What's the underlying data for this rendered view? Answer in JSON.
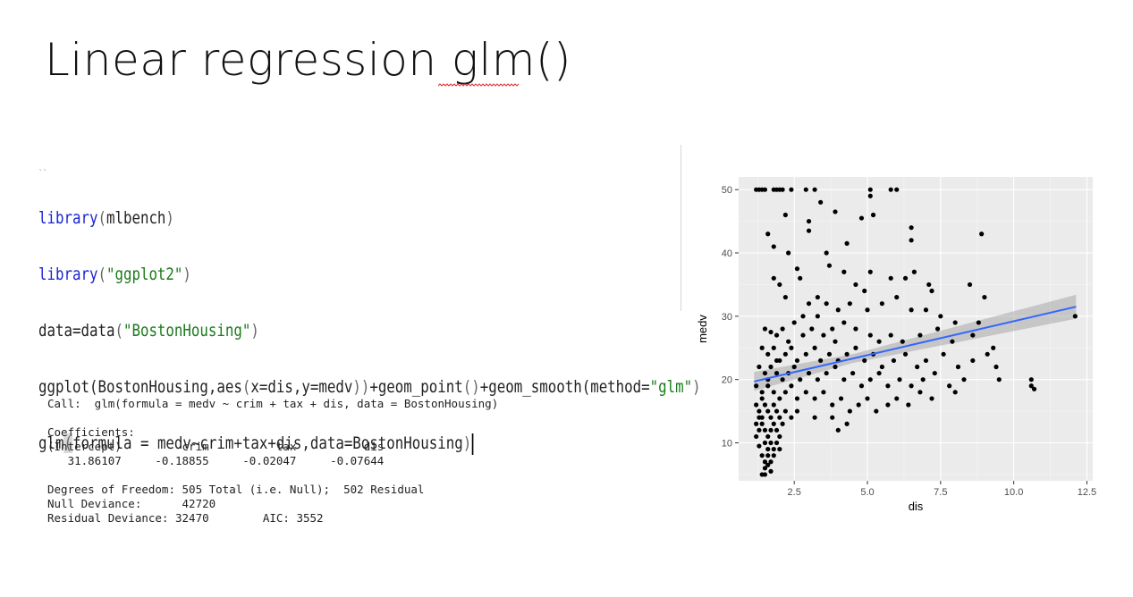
{
  "slide": {
    "title": "Linear regression glm()"
  },
  "code": {
    "marker": "``",
    "lines": [
      {
        "fn": "library",
        "open": "(",
        "arg": "mlbench",
        "close": ")"
      },
      {
        "fn": "library",
        "open": "(",
        "arg": "\"ggplot2\"",
        "close": ")"
      },
      {
        "pre": "data=data",
        "open": "(",
        "arg": "\"BostonHousing\"",
        "close": ")"
      },
      {
        "pre": "ggplot(BostonHousing,aes",
        "open": "(",
        "arg": "x=dis,y=medv",
        "close": "))",
        "post1": "+geom_point",
        "post1p": "()",
        "post2": "+geom_smooth(method=",
        "str": "\"glm\"",
        "end": ")"
      },
      {
        "pre": "glm",
        "open": "(",
        "arg": "formula = medv~crim+tax+dis,data=BostonHousing",
        "close": ")"
      }
    ]
  },
  "output": {
    "call": "Call:  glm(formula = medv ~ crim + tax + dis, data = BostonHousing)",
    "coef_title": "Coefficients:",
    "coef_names": "(Intercept)         crim          tax          dis  ",
    "coef_values": "   31.86107     -0.18855     -0.02047     -0.07644  ",
    "dof": "Degrees of Freedom: 505 Total (i.e. Null);  502 Residual",
    "null_dev": "Null Deviance:\t    42720 ",
    "resid_dev": "Residual Deviance: 32470 \tAIC: 3552"
  },
  "chart_data": {
    "type": "scatter",
    "xlabel": "dis",
    "ylabel": "medv",
    "xlim": [
      0.6,
      12.7
    ],
    "ylim": [
      4,
      52
    ],
    "xticks": [
      2.5,
      5.0,
      7.5,
      10.0,
      12.5
    ],
    "xtick_labels": [
      "2.5",
      "5.0",
      "7.5",
      "10.0",
      "12.5"
    ],
    "yticks": [
      10,
      20,
      30,
      40,
      50
    ],
    "ytick_labels": [
      "10",
      "20",
      "30",
      "40",
      "50"
    ],
    "grid": true,
    "background": "#ebebeb",
    "point_color": "#000000",
    "smooth": {
      "method": "glm",
      "color": "#3366ff",
      "band_color": "#999999",
      "x": [
        1.13,
        12.13
      ],
      "y": [
        19.7,
        31.5
      ],
      "se_low": [
        1.5,
        0.7,
        1.9
      ],
      "se_mid_x": 4.5
    },
    "points": [
      [
        1.2,
        50
      ],
      [
        1.3,
        50
      ],
      [
        1.4,
        50
      ],
      [
        1.5,
        50
      ],
      [
        1.8,
        50
      ],
      [
        1.9,
        50
      ],
      [
        2.0,
        50
      ],
      [
        2.1,
        50
      ],
      [
        2.4,
        50
      ],
      [
        2.9,
        50
      ],
      [
        3.2,
        50
      ],
      [
        5.1,
        50
      ],
      [
        5.8,
        50
      ],
      [
        6.0,
        50
      ],
      [
        5.1,
        49
      ],
      [
        3.4,
        48
      ],
      [
        3.9,
        46.5
      ],
      [
        2.2,
        46
      ],
      [
        3.0,
        45
      ],
      [
        4.8,
        45.5
      ],
      [
        5.2,
        46
      ],
      [
        6.5,
        44
      ],
      [
        8.9,
        43
      ],
      [
        3.0,
        43.5
      ],
      [
        1.6,
        43
      ],
      [
        4.3,
        41.5
      ],
      [
        6.5,
        42
      ],
      [
        1.8,
        41
      ],
      [
        2.3,
        40
      ],
      [
        3.6,
        40
      ],
      [
        2.6,
        37.5
      ],
      [
        3.7,
        38
      ],
      [
        4.2,
        37
      ],
      [
        5.1,
        37
      ],
      [
        5.8,
        36
      ],
      [
        6.6,
        37
      ],
      [
        6.3,
        36
      ],
      [
        1.8,
        36
      ],
      [
        2.0,
        35
      ],
      [
        2.7,
        36
      ],
      [
        4.6,
        35
      ],
      [
        4.9,
        34
      ],
      [
        7.1,
        35
      ],
      [
        7.2,
        34
      ],
      [
        8.5,
        35
      ],
      [
        9.0,
        33
      ],
      [
        2.2,
        33
      ],
      [
        3.0,
        32
      ],
      [
        3.3,
        33
      ],
      [
        3.6,
        32
      ],
      [
        4.0,
        31
      ],
      [
        4.4,
        32
      ],
      [
        5.0,
        31
      ],
      [
        5.5,
        32
      ],
      [
        6.0,
        33
      ],
      [
        6.5,
        31
      ],
      [
        7.0,
        31
      ],
      [
        7.5,
        30
      ],
      [
        8.0,
        29
      ],
      [
        8.8,
        29
      ],
      [
        12.1,
        30
      ],
      [
        1.5,
        28
      ],
      [
        1.7,
        27.5
      ],
      [
        1.9,
        27
      ],
      [
        2.1,
        28
      ],
      [
        2.5,
        29
      ],
      [
        2.8,
        27
      ],
      [
        3.1,
        28
      ],
      [
        3.5,
        27
      ],
      [
        3.8,
        28
      ],
      [
        4.2,
        29
      ],
      [
        4.6,
        28
      ],
      [
        5.1,
        27
      ],
      [
        5.4,
        26
      ],
      [
        5.8,
        27
      ],
      [
        6.2,
        26
      ],
      [
        6.8,
        27
      ],
      [
        7.4,
        28
      ],
      [
        7.9,
        26
      ],
      [
        8.6,
        27
      ],
      [
        9.3,
        25
      ],
      [
        1.4,
        25
      ],
      [
        1.6,
        24
      ],
      [
        1.8,
        25
      ],
      [
        2.0,
        23
      ],
      [
        2.2,
        24
      ],
      [
        2.4,
        25
      ],
      [
        2.6,
        23
      ],
      [
        2.9,
        24
      ],
      [
        3.2,
        25
      ],
      [
        3.4,
        23
      ],
      [
        3.7,
        24
      ],
      [
        4.0,
        23
      ],
      [
        4.3,
        24
      ],
      [
        4.6,
        25
      ],
      [
        4.9,
        23
      ],
      [
        5.2,
        24
      ],
      [
        5.5,
        22
      ],
      [
        5.9,
        23
      ],
      [
        6.3,
        24
      ],
      [
        6.7,
        22
      ],
      [
        7.0,
        23
      ],
      [
        7.6,
        24
      ],
      [
        8.1,
        22
      ],
      [
        8.6,
        23
      ],
      [
        9.1,
        24
      ],
      [
        9.4,
        22
      ],
      [
        1.3,
        22
      ],
      [
        1.5,
        21
      ],
      [
        1.7,
        22
      ],
      [
        1.9,
        21
      ],
      [
        2.1,
        20
      ],
      [
        2.3,
        21
      ],
      [
        2.5,
        22
      ],
      [
        2.7,
        20
      ],
      [
        3.0,
        21
      ],
      [
        3.3,
        20
      ],
      [
        3.6,
        21
      ],
      [
        3.9,
        22
      ],
      [
        4.2,
        20
      ],
      [
        4.5,
        21
      ],
      [
        4.8,
        19
      ],
      [
        5.1,
        20
      ],
      [
        5.4,
        21
      ],
      [
        5.7,
        19
      ],
      [
        6.1,
        20
      ],
      [
        6.5,
        19
      ],
      [
        6.9,
        20
      ],
      [
        7.3,
        21
      ],
      [
        7.8,
        19
      ],
      [
        8.3,
        20
      ],
      [
        9.5,
        20
      ],
      [
        10.6,
        20
      ],
      [
        1.2,
        19
      ],
      [
        1.4,
        18
      ],
      [
        1.6,
        19
      ],
      [
        1.8,
        18
      ],
      [
        2.0,
        17
      ],
      [
        2.2,
        18
      ],
      [
        2.4,
        19
      ],
      [
        2.6,
        17
      ],
      [
        2.9,
        18
      ],
      [
        3.2,
        17
      ],
      [
        3.5,
        18
      ],
      [
        3.8,
        16
      ],
      [
        4.1,
        17
      ],
      [
        4.4,
        15
      ],
      [
        4.7,
        16
      ],
      [
        5.0,
        17
      ],
      [
        5.3,
        15
      ],
      [
        5.7,
        16
      ],
      [
        6.0,
        17
      ],
      [
        6.4,
        16
      ],
      [
        6.8,
        18
      ],
      [
        7.2,
        17
      ],
      [
        8.0,
        18
      ],
      [
        10.7,
        18.5
      ],
      [
        10.6,
        19
      ],
      [
        1.2,
        16
      ],
      [
        1.3,
        15
      ],
      [
        1.4,
        14
      ],
      [
        1.5,
        16
      ],
      [
        1.6,
        15
      ],
      [
        1.7,
        14
      ],
      [
        1.8,
        16
      ],
      [
        1.9,
        15
      ],
      [
        2.0,
        14
      ],
      [
        2.2,
        15
      ],
      [
        2.4,
        14
      ],
      [
        2.6,
        15
      ],
      [
        3.2,
        14
      ],
      [
        3.8,
        14
      ],
      [
        4.3,
        13
      ],
      [
        4.0,
        12
      ],
      [
        1.2,
        13
      ],
      [
        1.3,
        12
      ],
      [
        1.4,
        13
      ],
      [
        1.5,
        12
      ],
      [
        1.6,
        11
      ],
      [
        1.7,
        12
      ],
      [
        1.8,
        13
      ],
      [
        1.9,
        12
      ],
      [
        2.0,
        11
      ],
      [
        2.1,
        13
      ],
      [
        1.5,
        10
      ],
      [
        1.6,
        9
      ],
      [
        1.7,
        10
      ],
      [
        1.8,
        9
      ],
      [
        1.9,
        10
      ],
      [
        2.0,
        9
      ],
      [
        1.4,
        8
      ],
      [
        1.5,
        7
      ],
      [
        1.6,
        8
      ],
      [
        1.7,
        7
      ],
      [
        1.8,
        8
      ],
      [
        1.5,
        6
      ],
      [
        1.6,
        6.5
      ],
      [
        1.4,
        5
      ],
      [
        1.5,
        5
      ],
      [
        1.7,
        5.5
      ],
      [
        1.3,
        9.5
      ],
      [
        1.2,
        11
      ],
      [
        1.3,
        14
      ],
      [
        1.4,
        17
      ],
      [
        1.6,
        20
      ],
      [
        1.9,
        23
      ],
      [
        2.3,
        26
      ],
      [
        2.8,
        30
      ],
      [
        3.3,
        30
      ],
      [
        3.9,
        26
      ]
    ]
  }
}
